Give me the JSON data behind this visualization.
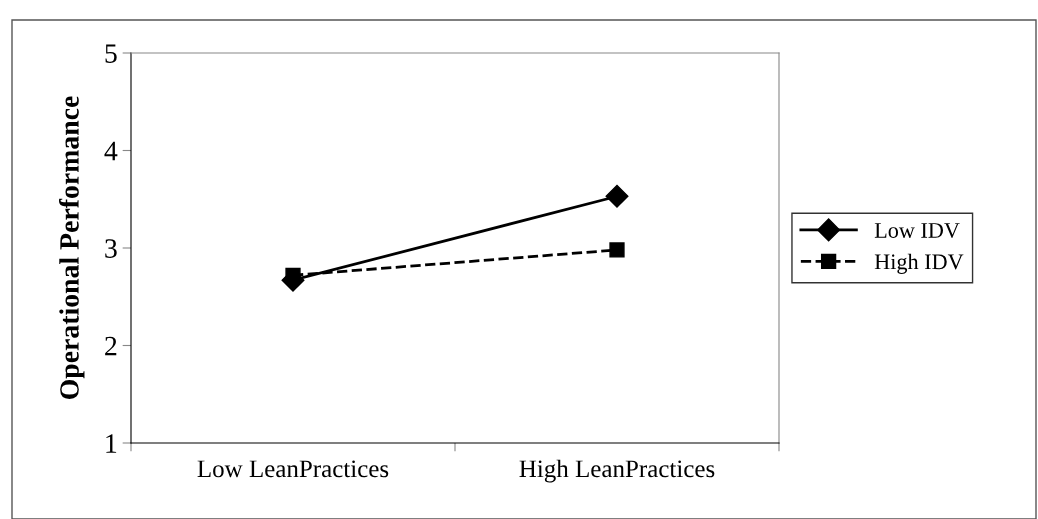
{
  "chart_data": {
    "type": "line",
    "ylabel": "Operational Performance",
    "categories": [
      "Low LeanPractices",
      "High LeanPractices"
    ],
    "series": [
      {
        "name": "Low IDV",
        "color": "#000000",
        "values": [
          2.67,
          3.53
        ],
        "marker": "diamond",
        "line_style": "solid"
      },
      {
        "name": "High IDV",
        "color": "#000000",
        "values": [
          2.72,
          2.98
        ],
        "marker": "square",
        "line_style": "dashed"
      }
    ],
    "ylim": [
      1,
      5
    ],
    "yticks": [
      1,
      2,
      3,
      4,
      5
    ],
    "grid": false,
    "legend": "right"
  }
}
